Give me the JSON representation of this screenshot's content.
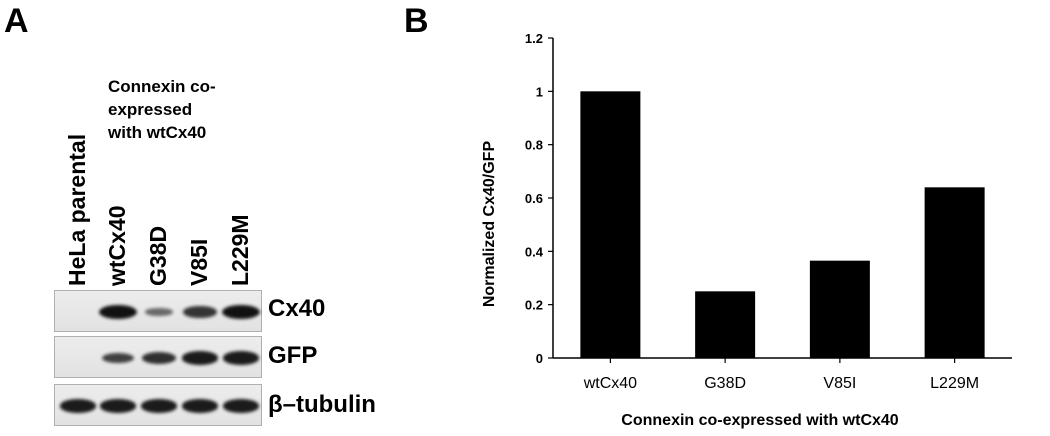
{
  "panel_a": {
    "letter": "A",
    "lanes": [
      "HeLa parental",
      "wtCx40",
      "G38D",
      "V85I",
      "L229M"
    ],
    "coexpressed_lines": [
      "Connexin co-",
      "expressed",
      "with wtCx40"
    ],
    "blots": [
      {
        "label": "Cx40",
        "band_intensity": [
          0,
          1.0,
          0.25,
          0.7,
          1.0
        ]
      },
      {
        "label": "GFP",
        "band_intensity": [
          0,
          0.6,
          0.75,
          0.9,
          0.9
        ]
      },
      {
        "label": "β–tubulin",
        "band_intensity": [
          0.9,
          0.9,
          0.9,
          0.9,
          0.9
        ]
      }
    ]
  },
  "panel_b": {
    "letter": "B",
    "chart_data": {
      "type": "bar",
      "categories": [
        "wtCx40",
        "G38D",
        "V85I",
        "L229M"
      ],
      "values": [
        1.0,
        0.25,
        0.365,
        0.64
      ],
      "xlabel": "Connexin co-expressed with wtCx40",
      "ylabel": "Normalized Cx40/GFP",
      "ylim": [
        0,
        1.2
      ],
      "yticks": [
        "0",
        "0.2",
        "0.4",
        "0.6",
        "0.8",
        "1",
        "1.2"
      ],
      "bar_color": "#000000",
      "grid": false
    }
  }
}
